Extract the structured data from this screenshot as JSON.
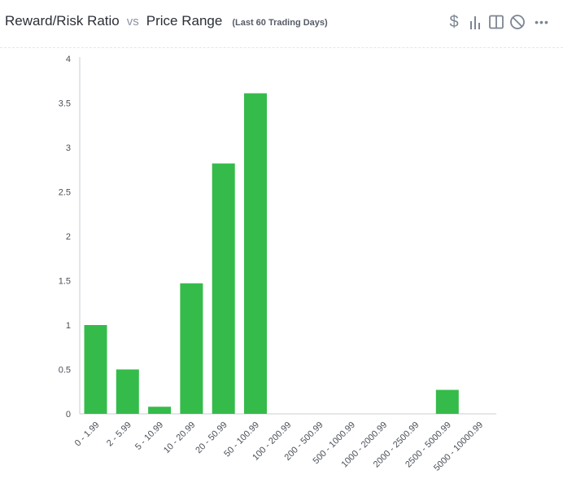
{
  "header": {
    "title_left": "Reward/Risk Ratio",
    "vs": "vs",
    "title_right": "Price Range",
    "subtitle": "(Last 60 Trading Days)"
  },
  "toolbar": {
    "icons": [
      "dollar-icon",
      "bar-chart-icon",
      "columns-icon",
      "ban-icon",
      "more-icon"
    ],
    "dollar_glyph": "$",
    "more_glyph": "•••"
  },
  "colors": {
    "bar": "#35bb4a",
    "axis": "#c8ccd2",
    "text": "#4a4f57"
  },
  "chart_data": {
    "type": "bar",
    "categories": [
      "0 - 1.99",
      "2 - 5.99",
      "5 - 10.99",
      "10 - 20.99",
      "20 - 50.99",
      "50 - 100.99",
      "100 - 200.99",
      "200 - 500.99",
      "500 - 1000.99",
      "1000 - 2000.99",
      "2000 - 2500.99",
      "2500 - 5000.99",
      "5000 - 10000.99"
    ],
    "values": [
      1.0,
      0.5,
      0.08,
      1.47,
      2.82,
      3.61,
      0,
      0,
      0,
      0,
      0,
      0.27,
      0
    ],
    "yticks": [
      "0",
      "0.5",
      "1",
      "1.5",
      "2",
      "2.5",
      "3",
      "3.5",
      "4"
    ],
    "ylim": [
      0,
      4
    ],
    "grid": false,
    "xlabel": "",
    "ylabel": ""
  }
}
